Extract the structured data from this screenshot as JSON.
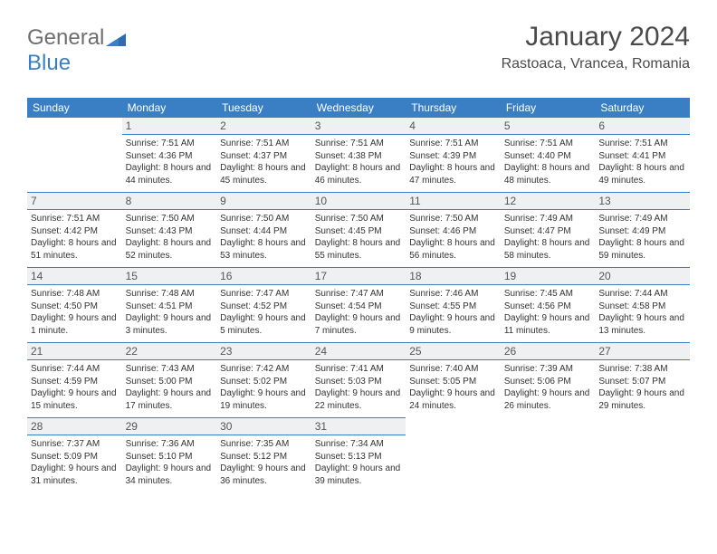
{
  "logo": {
    "text1": "General",
    "text2": "Blue"
  },
  "header": {
    "month": "January 2024",
    "location": "Rastoaca, Vrancea, Romania"
  },
  "colors": {
    "header_bg": "#3a7fc4",
    "header_fg": "#ffffff",
    "daynum_bg": "#eef0f2",
    "border": "#3a7fc4",
    "text": "#333333",
    "logo_gray": "#6e6e6e",
    "logo_blue": "#3a7fc4"
  },
  "dayNames": [
    "Sunday",
    "Monday",
    "Tuesday",
    "Wednesday",
    "Thursday",
    "Friday",
    "Saturday"
  ],
  "weeks": [
    [
      null,
      {
        "n": "1",
        "sr": "7:51 AM",
        "ss": "4:36 PM",
        "dl": "8 hours and 44 minutes."
      },
      {
        "n": "2",
        "sr": "7:51 AM",
        "ss": "4:37 PM",
        "dl": "8 hours and 45 minutes."
      },
      {
        "n": "3",
        "sr": "7:51 AM",
        "ss": "4:38 PM",
        "dl": "8 hours and 46 minutes."
      },
      {
        "n": "4",
        "sr": "7:51 AM",
        "ss": "4:39 PM",
        "dl": "8 hours and 47 minutes."
      },
      {
        "n": "5",
        "sr": "7:51 AM",
        "ss": "4:40 PM",
        "dl": "8 hours and 48 minutes."
      },
      {
        "n": "6",
        "sr": "7:51 AM",
        "ss": "4:41 PM",
        "dl": "8 hours and 49 minutes."
      }
    ],
    [
      {
        "n": "7",
        "sr": "7:51 AM",
        "ss": "4:42 PM",
        "dl": "8 hours and 51 minutes."
      },
      {
        "n": "8",
        "sr": "7:50 AM",
        "ss": "4:43 PM",
        "dl": "8 hours and 52 minutes."
      },
      {
        "n": "9",
        "sr": "7:50 AM",
        "ss": "4:44 PM",
        "dl": "8 hours and 53 minutes."
      },
      {
        "n": "10",
        "sr": "7:50 AM",
        "ss": "4:45 PM",
        "dl": "8 hours and 55 minutes."
      },
      {
        "n": "11",
        "sr": "7:50 AM",
        "ss": "4:46 PM",
        "dl": "8 hours and 56 minutes."
      },
      {
        "n": "12",
        "sr": "7:49 AM",
        "ss": "4:47 PM",
        "dl": "8 hours and 58 minutes."
      },
      {
        "n": "13",
        "sr": "7:49 AM",
        "ss": "4:49 PM",
        "dl": "8 hours and 59 minutes."
      }
    ],
    [
      {
        "n": "14",
        "sr": "7:48 AM",
        "ss": "4:50 PM",
        "dl": "9 hours and 1 minute."
      },
      {
        "n": "15",
        "sr": "7:48 AM",
        "ss": "4:51 PM",
        "dl": "9 hours and 3 minutes."
      },
      {
        "n": "16",
        "sr": "7:47 AM",
        "ss": "4:52 PM",
        "dl": "9 hours and 5 minutes."
      },
      {
        "n": "17",
        "sr": "7:47 AM",
        "ss": "4:54 PM",
        "dl": "9 hours and 7 minutes."
      },
      {
        "n": "18",
        "sr": "7:46 AM",
        "ss": "4:55 PM",
        "dl": "9 hours and 9 minutes."
      },
      {
        "n": "19",
        "sr": "7:45 AM",
        "ss": "4:56 PM",
        "dl": "9 hours and 11 minutes."
      },
      {
        "n": "20",
        "sr": "7:44 AM",
        "ss": "4:58 PM",
        "dl": "9 hours and 13 minutes."
      }
    ],
    [
      {
        "n": "21",
        "sr": "7:44 AM",
        "ss": "4:59 PM",
        "dl": "9 hours and 15 minutes."
      },
      {
        "n": "22",
        "sr": "7:43 AM",
        "ss": "5:00 PM",
        "dl": "9 hours and 17 minutes."
      },
      {
        "n": "23",
        "sr": "7:42 AM",
        "ss": "5:02 PM",
        "dl": "9 hours and 19 minutes."
      },
      {
        "n": "24",
        "sr": "7:41 AM",
        "ss": "5:03 PM",
        "dl": "9 hours and 22 minutes."
      },
      {
        "n": "25",
        "sr": "7:40 AM",
        "ss": "5:05 PM",
        "dl": "9 hours and 24 minutes."
      },
      {
        "n": "26",
        "sr": "7:39 AM",
        "ss": "5:06 PM",
        "dl": "9 hours and 26 minutes."
      },
      {
        "n": "27",
        "sr": "7:38 AM",
        "ss": "5:07 PM",
        "dl": "9 hours and 29 minutes."
      }
    ],
    [
      {
        "n": "28",
        "sr": "7:37 AM",
        "ss": "5:09 PM",
        "dl": "9 hours and 31 minutes."
      },
      {
        "n": "29",
        "sr": "7:36 AM",
        "ss": "5:10 PM",
        "dl": "9 hours and 34 minutes."
      },
      {
        "n": "30",
        "sr": "7:35 AM",
        "ss": "5:12 PM",
        "dl": "9 hours and 36 minutes."
      },
      {
        "n": "31",
        "sr": "7:34 AM",
        "ss": "5:13 PM",
        "dl": "9 hours and 39 minutes."
      },
      null,
      null,
      null
    ]
  ],
  "labels": {
    "sunrise": "Sunrise: ",
    "sunset": "Sunset: ",
    "daylight": "Daylight: "
  }
}
